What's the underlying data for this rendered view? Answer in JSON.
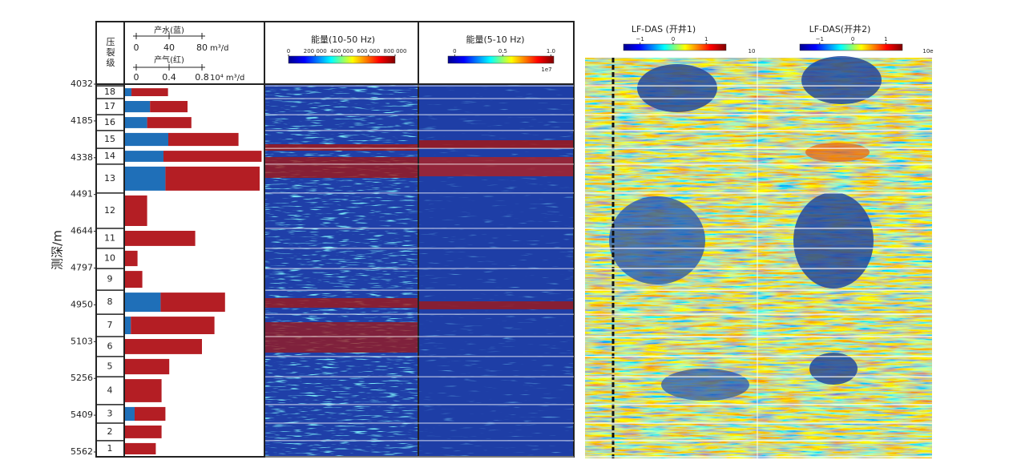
{
  "chart_data": {
    "type": "stage-bar",
    "y_label": "测深/m",
    "ylim": [
      4032,
      5562
    ],
    "yticks": [
      4032,
      4185,
      4338,
      4491,
      4644,
      4797,
      4950,
      5103,
      5256,
      5409,
      5562
    ],
    "stage_header": "压裂级",
    "categories": [
      "18",
      "17",
      "16",
      "15",
      "14",
      "13",
      "12",
      "11",
      "10",
      "9",
      "8",
      "7",
      "6",
      "5",
      "4",
      "3",
      "2",
      "1"
    ],
    "stage_bounds": [
      4039,
      4092,
      4159,
      4225,
      4299,
      4365,
      4485,
      4632,
      4715,
      4799,
      4889,
      4989,
      5082,
      5165,
      5249,
      5365,
      5442,
      5515,
      5582
    ],
    "water_axis": {
      "label": "产水(蓝)",
      "unit": "m³/d",
      "lim": [
        0,
        80
      ],
      "ticks": [
        0,
        40,
        80
      ]
    },
    "gas_axis": {
      "label": "产气(红)",
      "unit": "10⁴ m³/d",
      "lim": [
        0,
        0.8
      ],
      "ticks": [
        0,
        0.4,
        0.8
      ]
    },
    "series": [
      {
        "color": "#1f6fb8",
        "axis": "water",
        "values": [
          6.7,
          26,
          23,
          45,
          40,
          42,
          0,
          0,
          0,
          0,
          37,
          6,
          0,
          0,
          0,
          10,
          0,
          0
        ]
      },
      {
        "color": "#b41e24",
        "axis": "gas",
        "values": [
          0.38,
          0.39,
          0.46,
          0.73,
          1.02,
          0.98,
          0.23,
          0.73,
          0.13,
          0.18,
          0.67,
          0.87,
          0.8,
          0.46,
          0.38,
          0.32,
          0.38,
          0.32
        ]
      }
    ],
    "panels": [
      {
        "title": "能量(10-50 Hz)",
        "lim": [
          0,
          800000
        ],
        "ticks": [
          0,
          {
            "value": 200000,
            "label": "200 000"
          },
          {
            "value": 400000,
            "label": "400 000"
          },
          {
            "value": 600000,
            "label": "600 000"
          },
          {
            "value": 800000,
            "label": "800 000"
          }
        ]
      },
      {
        "title": "能量(5-10 Hz)",
        "lim": [
          -0.07,
          1.03
        ],
        "ticks": [
          0,
          0.5,
          {
            "value": 1,
            "label": "1.0"
          }
        ],
        "scale_note": "1e7"
      },
      {
        "title": "LF-DAS (开井1)",
        "lim": [
          -1.5,
          1.6
        ],
        "ticks": [
          {
            "value": -1,
            "label": "−1"
          },
          0,
          1
        ],
        "scale_note": "10"
      },
      {
        "title": "LF-DAS(开井2)",
        "lim": [
          -1.6,
          1.5
        ],
        "ticks": [
          {
            "value": -1,
            "label": "−1"
          },
          0,
          1
        ],
        "scale_note": "10e"
      }
    ]
  }
}
